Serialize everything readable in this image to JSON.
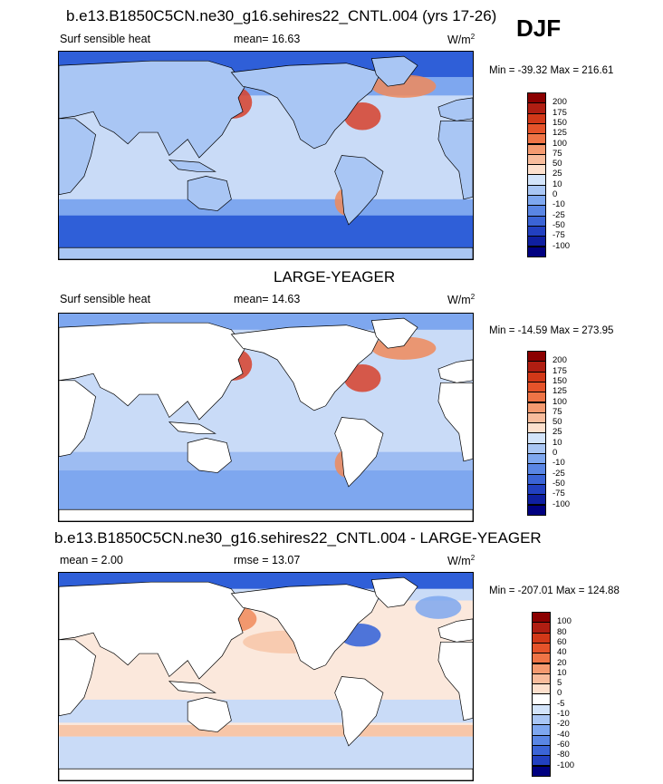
{
  "season": "DJF",
  "colors": {
    "ocean_neg_deep": "#2f5fd8",
    "ocean_neg": "#7ea7ef",
    "ocean_light": "#c9dbf7",
    "ocean_pos": "#f7c6a8",
    "ocean_warm": "#f08a5a",
    "ocean_hot": "#d7412b",
    "land": "#ffffff",
    "coast": "#000000"
  },
  "panels": [
    {
      "title": "b.e13.B1850C5CN.ne30_g16.sehires22_CNTL.004 (yrs 17-26)",
      "left_label": "Surf sensible heat",
      "center_label": "mean=  16.63",
      "units": "W/m",
      "units_sup": "2",
      "minmax": "Min = -39.32 Max = 216.61",
      "levels": [
        "200",
        "175",
        "150",
        "125",
        "100",
        "75",
        "50",
        "25",
        "10",
        "0",
        "-10",
        "-25",
        "-50",
        "-75",
        "-100"
      ],
      "colors": [
        "#8b0000",
        "#b01e12",
        "#d23818",
        "#e5532a",
        "#ef7446",
        "#f49a70",
        "#f8bc9c",
        "#fde0cd",
        "#d3e4fa",
        "#a9c6f4",
        "#7ea7ef",
        "#5a86e4",
        "#3b64d6",
        "#2240c0",
        "#0f1fa0",
        "#000080"
      ]
    },
    {
      "title": "LARGE-YEAGER",
      "left_label": "Surf sensible heat",
      "center_label": "mean=  14.63",
      "units": "W/m",
      "units_sup": "2",
      "minmax": "Min = -14.59 Max = 273.95",
      "levels": [
        "200",
        "175",
        "150",
        "125",
        "100",
        "75",
        "50",
        "25",
        "10",
        "0",
        "-10",
        "-25",
        "-50",
        "-75",
        "-100"
      ],
      "colors": [
        "#8b0000",
        "#b01e12",
        "#d23818",
        "#e5532a",
        "#ef7446",
        "#f49a70",
        "#f8bc9c",
        "#fde0cd",
        "#d3e4fa",
        "#a9c6f4",
        "#7ea7ef",
        "#5a86e4",
        "#3b64d6",
        "#2240c0",
        "#0f1fa0",
        "#000080"
      ]
    },
    {
      "title": "b.e13.B1850C5CN.ne30_g16.sehires22_CNTL.004 - LARGE-YEAGER",
      "left_label": "mean =   2.00",
      "center_label": "rmse =  13.07",
      "units": "W/m",
      "units_sup": "2",
      "minmax": "Min = -207.01 Max = 124.88",
      "levels": [
        "100",
        "80",
        "60",
        "40",
        "20",
        "10",
        "5",
        "0",
        "-5",
        "-10",
        "-20",
        "-40",
        "-60",
        "-80",
        "-100"
      ],
      "colors": [
        "#8b0000",
        "#b01e12",
        "#d23818",
        "#e5532a",
        "#ef7446",
        "#f49a70",
        "#f8bc9c",
        "#fde0cd",
        "#ffffff",
        "#d3e4fa",
        "#a9c6f4",
        "#7ea7ef",
        "#5a86e4",
        "#3b64d6",
        "#2240c0",
        "#000080"
      ]
    }
  ]
}
